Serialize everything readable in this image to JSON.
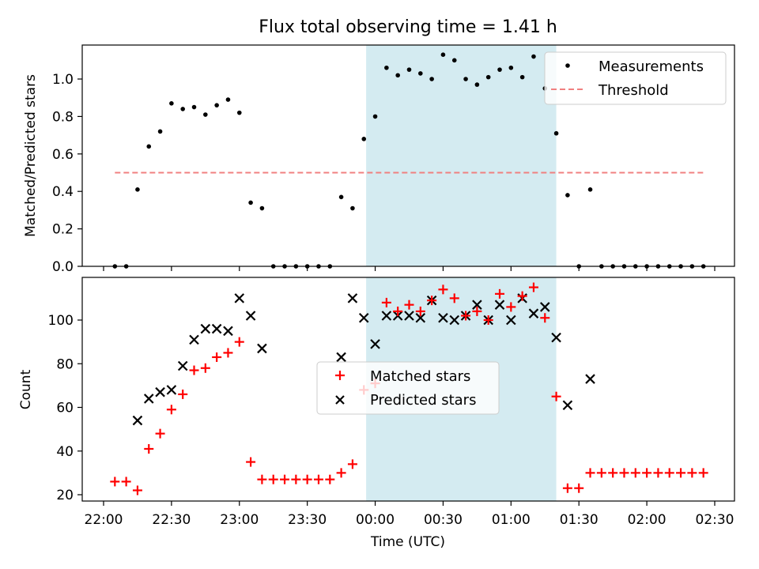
{
  "title": "Flux total observing time = 1.41 h",
  "xlabel": "Time (UTC)",
  "chart_data": [
    {
      "type": "scatter",
      "panel": "top",
      "ylabel": "Matched/Predicted stars",
      "xlim": [
        "21:55",
        "02:35"
      ],
      "ylim": [
        0,
        1.18
      ],
      "yticks": [
        0.0,
        0.2,
        0.4,
        0.6,
        0.8,
        1.0
      ],
      "ytick_labels": [
        "0.0",
        "0.2",
        "0.4",
        "0.6",
        "0.8",
        "1.0"
      ],
      "shaded_region": {
        "x_start": "23:56",
        "x_end": "01:20",
        "color": "#d4ebf1"
      },
      "legend_position": "upper right",
      "series": [
        {
          "name": "Measurements",
          "color": "#000000",
          "marker": "dot",
          "points": [
            [
              "22:05",
              0.0
            ],
            [
              "22:10",
              0.0
            ],
            [
              "22:15",
              0.41
            ],
            [
              "22:20",
              0.64
            ],
            [
              "22:25",
              0.72
            ],
            [
              "22:30",
              0.87
            ],
            [
              "22:35",
              0.84
            ],
            [
              "22:40",
              0.85
            ],
            [
              "22:45",
              0.81
            ],
            [
              "22:50",
              0.86
            ],
            [
              "22:55",
              0.89
            ],
            [
              "23:00",
              0.82
            ],
            [
              "23:05",
              0.34
            ],
            [
              "23:10",
              0.31
            ],
            [
              "23:15",
              0.0
            ],
            [
              "23:20",
              0.0
            ],
            [
              "23:25",
              0.0
            ],
            [
              "23:30",
              0.0
            ],
            [
              "23:35",
              0.0
            ],
            [
              "23:40",
              0.0
            ],
            [
              "23:45",
              0.37
            ],
            [
              "23:50",
              0.31
            ],
            [
              "23:55",
              0.68
            ],
            [
              "00:00",
              0.8
            ],
            [
              "00:05",
              1.06
            ],
            [
              "00:10",
              1.02
            ],
            [
              "00:15",
              1.05
            ],
            [
              "00:20",
              1.03
            ],
            [
              "00:25",
              1.0
            ],
            [
              "00:30",
              1.13
            ],
            [
              "00:35",
              1.1
            ],
            [
              "00:40",
              1.0
            ],
            [
              "00:45",
              0.97
            ],
            [
              "00:50",
              1.01
            ],
            [
              "00:55",
              1.05
            ],
            [
              "01:00",
              1.06
            ],
            [
              "01:05",
              1.01
            ],
            [
              "01:10",
              1.12
            ],
            [
              "01:15",
              0.95
            ],
            [
              "01:20",
              0.71
            ],
            [
              "01:25",
              0.38
            ],
            [
              "01:30",
              0.0
            ],
            [
              "01:35",
              0.41
            ],
            [
              "01:40",
              0.0
            ],
            [
              "01:45",
              0.0
            ],
            [
              "01:50",
              0.0
            ],
            [
              "01:55",
              0.0
            ],
            [
              "02:00",
              0.0
            ],
            [
              "02:05",
              0.0
            ],
            [
              "02:10",
              0.0
            ],
            [
              "02:15",
              0.0
            ],
            [
              "02:20",
              0.0
            ],
            [
              "02:25",
              0.0
            ]
          ]
        },
        {
          "name": "Threshold",
          "color": "#f08080",
          "marker": "dashed-line",
          "points": [
            [
              "22:05",
              0.5
            ],
            [
              "02:25",
              0.5
            ]
          ]
        }
      ]
    },
    {
      "type": "scatter",
      "panel": "bottom",
      "ylabel": "Count",
      "xlim": [
        "21:55",
        "02:35"
      ],
      "ylim": [
        17,
        119
      ],
      "yticks": [
        20,
        40,
        60,
        80,
        100
      ],
      "ytick_labels": [
        "20",
        "40",
        "60",
        "80",
        "100"
      ],
      "xticks": [
        "22:00",
        "22:30",
        "23:00",
        "23:30",
        "00:00",
        "00:30",
        "01:00",
        "01:30",
        "02:00",
        "02:30"
      ],
      "shaded_region": {
        "x_start": "23:56",
        "x_end": "01:20",
        "color": "#d4ebf1"
      },
      "legend_position": "center",
      "series": [
        {
          "name": "Matched stars",
          "color": "#ff0000",
          "marker": "plus",
          "points": [
            [
              "22:05",
              26
            ],
            [
              "22:10",
              26
            ],
            [
              "22:15",
              22
            ],
            [
              "22:20",
              41
            ],
            [
              "22:25",
              48
            ],
            [
              "22:30",
              59
            ],
            [
              "22:35",
              66
            ],
            [
              "22:40",
              77
            ],
            [
              "22:45",
              78
            ],
            [
              "22:50",
              83
            ],
            [
              "22:55",
              85
            ],
            [
              "23:00",
              90
            ],
            [
              "23:05",
              35
            ],
            [
              "23:10",
              27
            ],
            [
              "23:15",
              27
            ],
            [
              "23:20",
              27
            ],
            [
              "23:25",
              27
            ],
            [
              "23:30",
              27
            ],
            [
              "23:35",
              27
            ],
            [
              "23:40",
              27
            ],
            [
              "23:45",
              30
            ],
            [
              "23:50",
              34
            ],
            [
              "23:55",
              68
            ],
            [
              "00:00",
              71
            ],
            [
              "00:05",
              108
            ],
            [
              "00:10",
              104
            ],
            [
              "00:15",
              107
            ],
            [
              "00:20",
              104
            ],
            [
              "00:25",
              109
            ],
            [
              "00:30",
              114
            ],
            [
              "00:35",
              110
            ],
            [
              "00:40",
              102
            ],
            [
              "00:45",
              104
            ],
            [
              "00:50",
              100
            ],
            [
              "00:55",
              112
            ],
            [
              "01:00",
              106
            ],
            [
              "01:05",
              111
            ],
            [
              "01:10",
              115
            ],
            [
              "01:15",
              101
            ],
            [
              "01:20",
              65
            ],
            [
              "01:25",
              23
            ],
            [
              "01:30",
              23
            ],
            [
              "01:35",
              30
            ],
            [
              "01:40",
              30
            ],
            [
              "01:45",
              30
            ],
            [
              "01:50",
              30
            ],
            [
              "01:55",
              30
            ],
            [
              "02:00",
              30
            ],
            [
              "02:05",
              30
            ],
            [
              "02:10",
              30
            ],
            [
              "02:15",
              30
            ],
            [
              "02:20",
              30
            ],
            [
              "02:25",
              30
            ]
          ]
        },
        {
          "name": "Predicted stars",
          "color": "#000000",
          "marker": "x",
          "points": [
            [
              "22:15",
              54
            ],
            [
              "22:20",
              64
            ],
            [
              "22:25",
              67
            ],
            [
              "22:30",
              68
            ],
            [
              "22:35",
              79
            ],
            [
              "22:40",
              91
            ],
            [
              "22:45",
              96
            ],
            [
              "22:50",
              96
            ],
            [
              "22:55",
              95
            ],
            [
              "23:00",
              110
            ],
            [
              "23:05",
              102
            ],
            [
              "23:10",
              87
            ],
            [
              "23:45",
              83
            ],
            [
              "23:50",
              110
            ],
            [
              "23:55",
              101
            ],
            [
              "00:00",
              89
            ],
            [
              "00:05",
              102
            ],
            [
              "00:10",
              102
            ],
            [
              "00:15",
              102
            ],
            [
              "00:20",
              101
            ],
            [
              "00:25",
              109
            ],
            [
              "00:30",
              101
            ],
            [
              "00:35",
              100
            ],
            [
              "00:40",
              102
            ],
            [
              "00:45",
              107
            ],
            [
              "00:50",
              100
            ],
            [
              "00:55",
              107
            ],
            [
              "01:00",
              100
            ],
            [
              "01:05",
              110
            ],
            [
              "01:10",
              103
            ],
            [
              "01:15",
              106
            ],
            [
              "01:20",
              92
            ],
            [
              "01:25",
              61
            ],
            [
              "01:35",
              73
            ]
          ]
        }
      ]
    }
  ]
}
